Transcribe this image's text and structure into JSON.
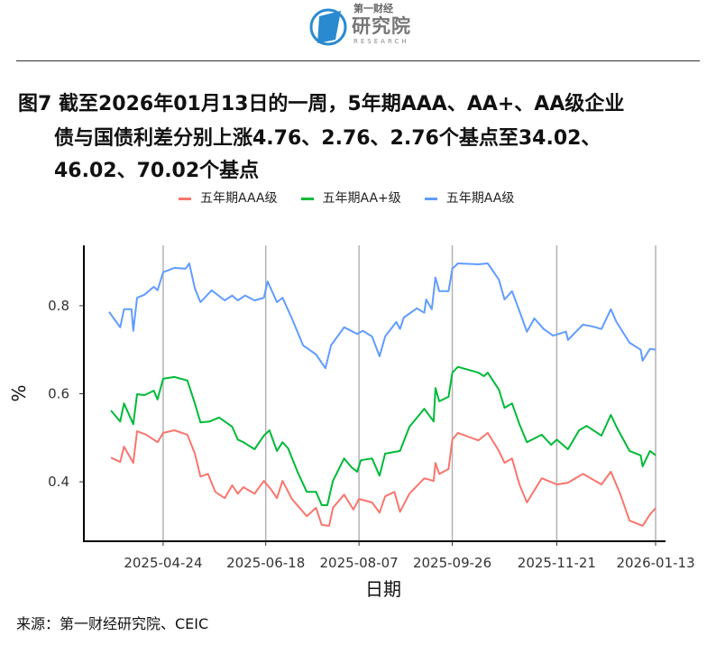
{
  "logo": {
    "top_text": "第一财经",
    "main_text": "研究院",
    "sub_text": "RESEARCH"
  },
  "title": {
    "line1": "图7  截至2026年01月13日的一周，5年期AAA、AA+、AA级企业",
    "line2": "债与国债利差分别上涨4.76、2.76、2.76个基点至34.02、",
    "line3": "46.02、70.02个基点"
  },
  "source": "来源：第一财经研究院、CEIC",
  "chart_data": {
    "type": "line",
    "title": "",
    "xlabel": "日期",
    "ylabel": "%",
    "x_unit": "days since 2025-04-24",
    "xlim": [
      -42.5,
      269.3
    ],
    "ylim": [
      0.265,
      0.937
    ],
    "grid": "vertical at x ticks",
    "legend_position": "top",
    "x_ticks": [
      {
        "x": 0,
        "label": "2025-04-24"
      },
      {
        "x": 55,
        "label": "2025-06-18"
      },
      {
        "x": 105,
        "label": "2025-08-07"
      },
      {
        "x": 155,
        "label": "2025-09-26"
      },
      {
        "x": 211,
        "label": "2025-11-21"
      },
      {
        "x": 264,
        "label": "2026-01-13"
      }
    ],
    "y_ticks": [
      {
        "y": 0.4,
        "label": "0.4"
      },
      {
        "y": 0.6,
        "label": "0.6"
      },
      {
        "y": 0.8,
        "label": "0.8"
      }
    ],
    "series": [
      {
        "name": "五年期AAA级",
        "color": "#F8766D",
        "points": [
          [
            -28,
            0.455
          ],
          [
            -23,
            0.445
          ],
          [
            -21,
            0.48
          ],
          [
            -16,
            0.443
          ],
          [
            -14,
            0.515
          ],
          [
            -9,
            0.507
          ],
          [
            -3,
            0.49
          ],
          [
            0,
            0.511
          ],
          [
            6,
            0.517
          ],
          [
            13,
            0.507
          ],
          [
            17,
            0.464
          ],
          [
            20,
            0.412
          ],
          [
            24,
            0.418
          ],
          [
            28,
            0.377
          ],
          [
            33,
            0.363
          ],
          [
            37,
            0.392
          ],
          [
            40,
            0.373
          ],
          [
            43,
            0.388
          ],
          [
            49,
            0.373
          ],
          [
            54,
            0.402
          ],
          [
            58,
            0.382
          ],
          [
            61,
            0.363
          ],
          [
            64,
            0.402
          ],
          [
            69,
            0.361
          ],
          [
            77,
            0.322
          ],
          [
            82,
            0.341
          ],
          [
            85,
            0.302
          ],
          [
            89,
            0.3
          ],
          [
            91,
            0.341
          ],
          [
            97,
            0.371
          ],
          [
            102,
            0.337
          ],
          [
            105,
            0.361
          ],
          [
            112,
            0.353
          ],
          [
            116,
            0.33
          ],
          [
            119,
            0.367
          ],
          [
            124,
            0.377
          ],
          [
            127,
            0.332
          ],
          [
            132,
            0.373
          ],
          [
            140,
            0.408
          ],
          [
            145,
            0.402
          ],
          [
            146,
            0.443
          ],
          [
            148,
            0.418
          ],
          [
            153,
            0.429
          ],
          [
            155,
            0.496
          ],
          [
            158,
            0.511
          ],
          [
            169,
            0.494
          ],
          [
            174,
            0.511
          ],
          [
            180,
            0.47
          ],
          [
            183,
            0.443
          ],
          [
            187,
            0.453
          ],
          [
            191,
            0.394
          ],
          [
            195,
            0.353
          ],
          [
            203,
            0.408
          ],
          [
            211,
            0.394
          ],
          [
            217,
            0.398
          ],
          [
            225,
            0.418
          ],
          [
            235,
            0.394
          ],
          [
            240,
            0.423
          ],
          [
            245,
            0.373
          ],
          [
            250,
            0.312
          ],
          [
            257,
            0.3
          ],
          [
            261,
            0.326
          ],
          [
            264,
            0.3402
          ]
        ]
      },
      {
        "name": "五年期AA+级",
        "color": "#00BA38",
        "points": [
          [
            -28,
            0.562
          ],
          [
            -23,
            0.537
          ],
          [
            -21,
            0.578
          ],
          [
            -16,
            0.531
          ],
          [
            -14,
            0.599
          ],
          [
            -10,
            0.597
          ],
          [
            -5,
            0.607
          ],
          [
            -3,
            0.587
          ],
          [
            0,
            0.634
          ],
          [
            6,
            0.638
          ],
          [
            13,
            0.63
          ],
          [
            17,
            0.578
          ],
          [
            20,
            0.535
          ],
          [
            25,
            0.537
          ],
          [
            30,
            0.546
          ],
          [
            37,
            0.525
          ],
          [
            40,
            0.496
          ],
          [
            43,
            0.49
          ],
          [
            49,
            0.474
          ],
          [
            54,
            0.505
          ],
          [
            57,
            0.517
          ],
          [
            61,
            0.47
          ],
          [
            64,
            0.49
          ],
          [
            67,
            0.476
          ],
          [
            72,
            0.423
          ],
          [
            77,
            0.377
          ],
          [
            82,
            0.377
          ],
          [
            85,
            0.347
          ],
          [
            88,
            0.347
          ],
          [
            91,
            0.402
          ],
          [
            97,
            0.453
          ],
          [
            101,
            0.433
          ],
          [
            104,
            0.423
          ],
          [
            106,
            0.449
          ],
          [
            112,
            0.453
          ],
          [
            116,
            0.414
          ],
          [
            119,
            0.464
          ],
          [
            127,
            0.47
          ],
          [
            132,
            0.525
          ],
          [
            140,
            0.566
          ],
          [
            145,
            0.537
          ],
          [
            146,
            0.613
          ],
          [
            148,
            0.583
          ],
          [
            153,
            0.593
          ],
          [
            155,
            0.648
          ],
          [
            158,
            0.661
          ],
          [
            169,
            0.648
          ],
          [
            172,
            0.64
          ],
          [
            174,
            0.648
          ],
          [
            180,
            0.609
          ],
          [
            183,
            0.568
          ],
          [
            187,
            0.578
          ],
          [
            191,
            0.531
          ],
          [
            195,
            0.49
          ],
          [
            203,
            0.507
          ],
          [
            208,
            0.484
          ],
          [
            211,
            0.496
          ],
          [
            217,
            0.474
          ],
          [
            223,
            0.517
          ],
          [
            227,
            0.527
          ],
          [
            235,
            0.505
          ],
          [
            240,
            0.552
          ],
          [
            243,
            0.525
          ],
          [
            250,
            0.47
          ],
          [
            256,
            0.46
          ],
          [
            257,
            0.435
          ],
          [
            261,
            0.47
          ],
          [
            264,
            0.4602
          ]
        ]
      },
      {
        "name": "五年期AA级",
        "color": "#619CFF",
        "points": [
          [
            -29,
            0.786
          ],
          [
            -23,
            0.751
          ],
          [
            -21,
            0.792
          ],
          [
            -17,
            0.792
          ],
          [
            -16,
            0.743
          ],
          [
            -14,
            0.818
          ],
          [
            -10,
            0.825
          ],
          [
            -5,
            0.843
          ],
          [
            -3,
            0.835
          ],
          [
            0,
            0.876
          ],
          [
            6,
            0.886
          ],
          [
            12,
            0.884
          ],
          [
            14,
            0.896
          ],
          [
            17,
            0.839
          ],
          [
            20,
            0.808
          ],
          [
            26,
            0.835
          ],
          [
            33,
            0.812
          ],
          [
            37,
            0.823
          ],
          [
            40,
            0.812
          ],
          [
            44,
            0.823
          ],
          [
            49,
            0.812
          ],
          [
            54,
            0.818
          ],
          [
            56,
            0.855
          ],
          [
            61,
            0.808
          ],
          [
            64,
            0.818
          ],
          [
            69,
            0.771
          ],
          [
            75,
            0.71
          ],
          [
            82,
            0.689
          ],
          [
            87,
            0.658
          ],
          [
            90,
            0.71
          ],
          [
            97,
            0.751
          ],
          [
            104,
            0.736
          ],
          [
            107,
            0.743
          ],
          [
            112,
            0.73
          ],
          [
            116,
            0.685
          ],
          [
            119,
            0.73
          ],
          [
            125,
            0.763
          ],
          [
            127,
            0.747
          ],
          [
            129,
            0.773
          ],
          [
            136,
            0.794
          ],
          [
            140,
            0.784
          ],
          [
            141,
            0.814
          ],
          [
            144,
            0.792
          ],
          [
            146,
            0.864
          ],
          [
            148,
            0.833
          ],
          [
            153,
            0.833
          ],
          [
            155,
            0.884
          ],
          [
            158,
            0.896
          ],
          [
            169,
            0.894
          ],
          [
            174,
            0.896
          ],
          [
            180,
            0.859
          ],
          [
            183,
            0.814
          ],
          [
            187,
            0.833
          ],
          [
            191,
            0.788
          ],
          [
            195,
            0.741
          ],
          [
            199,
            0.771
          ],
          [
            204,
            0.747
          ],
          [
            209,
            0.732
          ],
          [
            216,
            0.741
          ],
          [
            217,
            0.722
          ],
          [
            225,
            0.757
          ],
          [
            230,
            0.753
          ],
          [
            235,
            0.747
          ],
          [
            240,
            0.792
          ],
          [
            243,
            0.763
          ],
          [
            250,
            0.716
          ],
          [
            256,
            0.7
          ],
          [
            257,
            0.675
          ],
          [
            261,
            0.702
          ],
          [
            264,
            0.7002
          ]
        ]
      }
    ]
  }
}
